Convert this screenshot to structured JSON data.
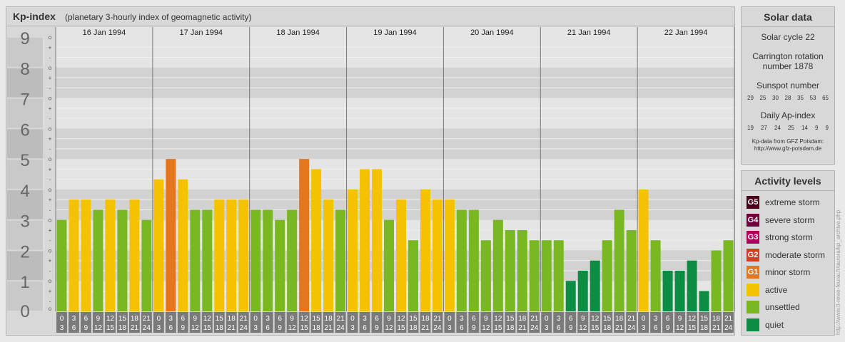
{
  "title": {
    "main": "Kp-index",
    "sub": "(planetary 3-hourly index of geomagnetic activity)"
  },
  "chart_data": {
    "type": "bar",
    "days": [
      "16 Jan 1994",
      "17 Jan 1994",
      "18 Jan 1994",
      "19 Jan 1994",
      "20 Jan 1994",
      "21 Jan 1994",
      "22 Jan 1994"
    ],
    "hour_labels": [
      [
        "0",
        "3"
      ],
      [
        "3",
        "6"
      ],
      [
        "6",
        "9"
      ],
      [
        "9",
        "12"
      ],
      [
        "12",
        "15"
      ],
      [
        "15",
        "18"
      ],
      [
        "18",
        "21"
      ],
      [
        "21",
        "24"
      ]
    ],
    "values": [
      3.0,
      3.667,
      3.667,
      3.333,
      3.667,
      3.333,
      3.667,
      3.0,
      4.333,
      5.0,
      4.333,
      3.333,
      3.333,
      3.667,
      3.667,
      3.667,
      3.333,
      3.333,
      3.0,
      3.333,
      5.0,
      4.667,
      3.667,
      3.333,
      4.0,
      4.667,
      4.667,
      3.0,
      3.667,
      2.333,
      4.0,
      3.667,
      3.667,
      3.333,
      3.333,
      2.333,
      3.0,
      2.667,
      2.667,
      2.333,
      2.333,
      2.333,
      1.0,
      1.333,
      1.667,
      2.333,
      3.333,
      2.667,
      4.0,
      2.333,
      1.333,
      1.333,
      1.667,
      0.667,
      2.0,
      2.333
    ],
    "ylim": [
      0,
      9
    ],
    "y_ticks": [
      "0",
      "1",
      "2",
      "3",
      "4",
      "5",
      "6",
      "7",
      "8",
      "9"
    ],
    "minor_marks": [
      "o",
      "+",
      "-"
    ],
    "category_colors": {
      "active": "#f5c200",
      "minor_storm": "#e4761e",
      "unsettled": "#7ab821",
      "quiet": "#0d8c44"
    }
  },
  "solar": {
    "heading": "Solar data",
    "cycle": "Solar cycle 22",
    "carrington_1": "Carrington rotation",
    "carrington_2": "number 1878",
    "sunspot_label": "Sunspot number",
    "sunspot_values": [
      "29",
      "25",
      "30",
      "28",
      "35",
      "53",
      "65"
    ],
    "ap_label": "Daily Ap-index",
    "ap_values": [
      "19",
      "27",
      "24",
      "25",
      "14",
      "9",
      "9"
    ],
    "source_1": "Kp-data from GFZ Potsdam:",
    "source_2": "http://www.gfz-potsdam.de"
  },
  "activity": {
    "heading": "Activity levels",
    "levels": [
      {
        "code": "G5",
        "label": "extreme storm",
        "color": "#4a0019"
      },
      {
        "code": "G4",
        "label": "severe storm",
        "color": "#6b003a"
      },
      {
        "code": "G3",
        "label": "strong storm",
        "color": "#b5005d"
      },
      {
        "code": "G2",
        "label": "moderate storm",
        "color": "#d24024"
      },
      {
        "code": "G1",
        "label": "minor storm",
        "color": "#e4761e"
      },
      {
        "code": "",
        "label": "active",
        "color": "#f5c200"
      },
      {
        "code": "",
        "label": "unsettled",
        "color": "#7ab821"
      },
      {
        "code": "",
        "label": "quiet",
        "color": "#0d8c44"
      }
    ]
  },
  "watermark": "http://www.tt-rewe-feurai.fr/aurora/kp_archive.php"
}
